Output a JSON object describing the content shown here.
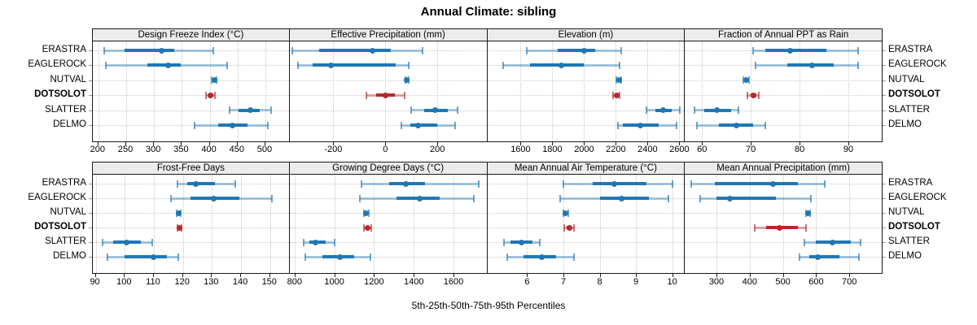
{
  "chart_data": {
    "type": "scatter",
    "subtype": "trellis-percentile-intervals",
    "title": "Annual Climate: sibling",
    "xlabel": "5th-25th-50th-75th-95th Percentiles",
    "percentiles": [
      5,
      25,
      50,
      75,
      95
    ],
    "layout": {
      "rows": 2,
      "cols": 4,
      "grid": "dotted",
      "legend": "none",
      "site_labels": "both-sides"
    },
    "sites": [
      "ERASTRA",
      "EAGLEROCK",
      "NUTVAL",
      "DOTSOLOT",
      "SLATTER",
      "DELMO"
    ],
    "highlight_site": "DOTSOLOT",
    "colors": {
      "series": "#1f77b4",
      "series_light": "rgba(31,119,180,0.40)",
      "series_cap": "rgba(31,119,180,0.65)",
      "highlight": "#b5292b",
      "highlight_light": "rgba(181,41,43,0.40)",
      "highlight_cap": "rgba(181,41,43,0.65)",
      "strip_bg": "#ececec",
      "grid": "#c8c8c8",
      "border": "#1a1a1a"
    },
    "panels": [
      {
        "title": "Design Freeze Index (°C)",
        "xlim": [
          190,
          545
        ],
        "ticks": [
          200,
          250,
          300,
          350,
          400,
          450,
          500
        ],
        "values": {
          "ERASTRA": [
            211,
            247,
            313,
            336,
            407
          ],
          "EAGLEROCK": [
            213,
            288,
            325,
            348,
            432
          ],
          "NUTVAL": [
            404,
            406,
            408,
            410,
            412
          ],
          "DOTSOLOT": [
            394,
            399,
            402,
            406,
            409
          ],
          "SLATTER": [
            435,
            452,
            473,
            490,
            510
          ],
          "DELMO": [
            373,
            415,
            441,
            468,
            505
          ]
        }
      },
      {
        "title": "Effective Precipitation (mm)",
        "xlim": [
          -368,
          392
        ],
        "ticks": [
          -200,
          0,
          200
        ],
        "values": {
          "ERASTRA": [
            -357,
            -255,
            -51,
            20,
            142
          ],
          "EAGLEROCK": [
            -336,
            -280,
            -210,
            40,
            91
          ],
          "NUTVAL": [
            76,
            80,
            83,
            86,
            89
          ],
          "DOTSOLOT": [
            -73,
            -35,
            2,
            38,
            73
          ],
          "SLATTER": [
            98,
            150,
            191,
            240,
            279
          ],
          "DELMO": [
            62,
            95,
            126,
            200,
            268
          ]
        }
      },
      {
        "title": "Elevation (m)",
        "xlim": [
          1390,
          2635
        ],
        "ticks": [
          1600,
          1800,
          2000,
          2200,
          2400,
          2600
        ],
        "values": {
          "ERASTRA": [
            1638,
            1835,
            2000,
            2070,
            2235
          ],
          "EAGLEROCK": [
            1490,
            1660,
            1855,
            2000,
            2225
          ],
          "NUTVAL": [
            2205,
            2215,
            2222,
            2228,
            2235
          ],
          "DOTSOLOT": [
            2180,
            2195,
            2203,
            2212,
            2222
          ],
          "SLATTER": [
            2395,
            2450,
            2500,
            2550,
            2605
          ],
          "DELMO": [
            2215,
            2245,
            2355,
            2470,
            2580
          ]
        }
      },
      {
        "title": "Fraction of Annual PPT as Rain",
        "xlim": [
          56.5,
          97
        ],
        "ticks": [
          60,
          70,
          80,
          90
        ],
        "values": {
          "ERASTRA": [
            70.5,
            73,
            78,
            85.5,
            92
          ],
          "EAGLEROCK": [
            71,
            77.5,
            82.5,
            87,
            92
          ],
          "NUTVAL": [
            68.4,
            68.8,
            69.1,
            69.4,
            69.7
          ],
          "DOTSOLOT": [
            69.3,
            70,
            70.5,
            71.1,
            71.7
          ],
          "SLATTER": [
            58.5,
            60.5,
            63,
            66,
            67.5
          ],
          "DELMO": [
            59,
            63.5,
            67,
            70.5,
            73
          ]
        }
      },
      {
        "title": "Frost-Free Days",
        "xlim": [
          89,
          157
        ],
        "ticks": [
          90,
          100,
          110,
          120,
          130,
          140,
          150
        ],
        "values": {
          "ERASTRA": [
            118,
            121.5,
            124.5,
            131,
            138
          ],
          "EAGLEROCK": [
            116,
            122.5,
            130.5,
            139.5,
            150.5
          ],
          "NUTVAL": [
            117.8,
            118.2,
            118.5,
            118.8,
            119.2
          ],
          "DOTSOLOT": [
            118,
            118.4,
            118.8,
            119.2,
            119.6
          ],
          "SLATTER": [
            92.5,
            96,
            100.5,
            105.5,
            109.5
          ],
          "DELMO": [
            94,
            100,
            110,
            114.5,
            118.5
          ]
        }
      },
      {
        "title": "Growing Degree Days (°C)",
        "xlim": [
          775,
          1770
        ],
        "ticks": [
          800,
          1000,
          1200,
          1400,
          1600
        ],
        "values": {
          "ERASTRA": [
            1137,
            1277,
            1362,
            1455,
            1727
          ],
          "EAGLEROCK": [
            1129,
            1311,
            1430,
            1530,
            1703
          ],
          "NUTVAL": [
            1148,
            1155,
            1160,
            1166,
            1172
          ],
          "DOTSOLOT": [
            1150,
            1160,
            1168,
            1177,
            1186
          ],
          "SLATTER": [
            845,
            875,
            905,
            955,
            1000
          ],
          "DELMO": [
            855,
            940,
            1030,
            1100,
            1180
          ]
        }
      },
      {
        "title": "Mean Annual Air Temperature (°C)",
        "xlim": [
          4.9,
          10.35
        ],
        "ticks": [
          6,
          7,
          8,
          9,
          10
        ],
        "values": {
          "ERASTRA": [
            7.0,
            7.8,
            8.4,
            9.3,
            10.0
          ],
          "EAGLEROCK": [
            6.9,
            8.0,
            8.6,
            9.35,
            9.9
          ],
          "NUTVAL": [
            7.0,
            7.03,
            7.06,
            7.1,
            7.13
          ],
          "DOTSOLOT": [
            7.03,
            7.1,
            7.16,
            7.22,
            7.3
          ],
          "SLATTER": [
            5.35,
            5.55,
            5.85,
            6.15,
            6.35
          ],
          "DELMO": [
            5.45,
            5.9,
            6.4,
            6.8,
            7.3
          ]
        }
      },
      {
        "title": "Mean Annual Precipitation (mm)",
        "xlim": [
          205,
          800
        ],
        "ticks": [
          300,
          400,
          500,
          600,
          700
        ],
        "values": {
          "ERASTRA": [
            225,
            295,
            470,
            545,
            625
          ],
          "EAGLEROCK": [
            250,
            300,
            340,
            480,
            585
          ],
          "NUTVAL": [
            570,
            573,
            576,
            579,
            582
          ],
          "DOTSOLOT": [
            415,
            450,
            490,
            545,
            570
          ],
          "SLATTER": [
            565,
            600,
            650,
            705,
            735
          ],
          "DELMO": [
            550,
            580,
            605,
            670,
            730
          ]
        }
      }
    ]
  }
}
